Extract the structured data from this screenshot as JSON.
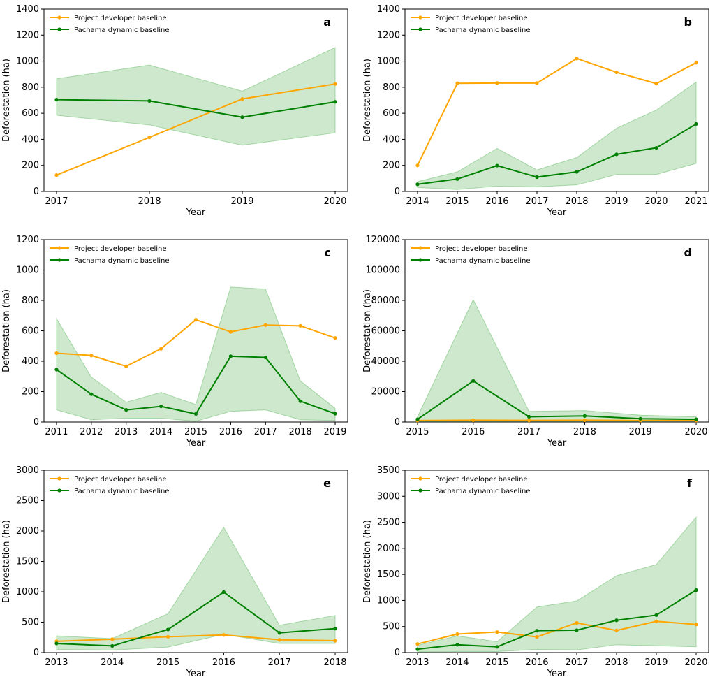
{
  "colors": {
    "developer": "#FFA500",
    "pachama": "#008000",
    "band": "#2ca02c"
  },
  "chart_data": [
    {
      "type": "line",
      "panel_label": "a",
      "xlabel": "Year",
      "ylabel": "Deforestation (ha)",
      "x": [
        2017,
        2018,
        2019,
        2020
      ],
      "ylim": [
        0,
        1400
      ],
      "yticks": [
        0,
        200,
        400,
        600,
        800,
        1000,
        1200,
        1400
      ],
      "grid": false,
      "legend_position": "top-left",
      "series": [
        {
          "name": "Project developer baseline",
          "values": [
            125,
            415,
            710,
            825
          ]
        },
        {
          "name": "Pachama dynamic baseline",
          "values": [
            705,
            695,
            570,
            688
          ]
        }
      ],
      "band": {
        "lower": [
          585,
          510,
          355,
          450
        ],
        "upper": [
          865,
          970,
          770,
          1105
        ]
      }
    },
    {
      "type": "line",
      "panel_label": "b",
      "xlabel": "Year",
      "ylabel": "Deforestation (ha)",
      "x": [
        2014,
        2015,
        2016,
        2017,
        2018,
        2019,
        2020,
        2021
      ],
      "ylim": [
        0,
        1400
      ],
      "yticks": [
        0,
        200,
        400,
        600,
        800,
        1000,
        1200,
        1400
      ],
      "grid": false,
      "legend_position": "top-left",
      "series": [
        {
          "name": "Project developer baseline",
          "values": [
            200,
            830,
            832,
            832,
            1020,
            915,
            828,
            988
          ]
        },
        {
          "name": "Pachama dynamic baseline",
          "values": [
            55,
            95,
            198,
            110,
            150,
            285,
            335,
            518
          ]
        }
      ],
      "band": {
        "lower": [
          30,
          15,
          40,
          35,
          50,
          130,
          130,
          215
        ],
        "upper": [
          75,
          150,
          330,
          165,
          260,
          485,
          625,
          840
        ]
      }
    },
    {
      "type": "line",
      "panel_label": "c",
      "xlabel": "Year",
      "ylabel": "Deforestation (ha)",
      "x": [
        2011,
        2012,
        2013,
        2014,
        2015,
        2016,
        2017,
        2018,
        2019
      ],
      "ylim": [
        0,
        1200
      ],
      "yticks": [
        0,
        200,
        400,
        600,
        800,
        1000,
        1200
      ],
      "grid": false,
      "legend_position": "top-left",
      "series": [
        {
          "name": "Project developer baseline",
          "values": [
            453,
            438,
            367,
            482,
            673,
            593,
            638,
            633,
            553
          ]
        },
        {
          "name": "Pachama dynamic baseline",
          "values": [
            345,
            183,
            80,
            103,
            53,
            433,
            425,
            137,
            55
          ]
        }
      ],
      "band": {
        "lower": [
          80,
          15,
          25,
          25,
          5,
          70,
          80,
          15,
          10
        ],
        "upper": [
          680,
          295,
          130,
          195,
          115,
          888,
          875,
          270,
          90
        ]
      }
    },
    {
      "type": "line",
      "panel_label": "d",
      "xlabel": "Year",
      "ylabel": "Deforestation (ha)",
      "x": [
        2015,
        2016,
        2017,
        2018,
        2019,
        2020
      ],
      "ylim": [
        0,
        120000
      ],
      "yticks": [
        0,
        20000,
        40000,
        60000,
        80000,
        100000,
        120000
      ],
      "grid": false,
      "legend_position": "top-left",
      "series": [
        {
          "name": "Project developer baseline",
          "values": [
            1000,
            1200,
            1100,
            1200,
            1000,
            1000
          ]
        },
        {
          "name": "Pachama dynamic baseline",
          "values": [
            1800,
            27000,
            3500,
            4000,
            2200,
            1800
          ]
        }
      ],
      "band": {
        "lower": [
          200,
          300,
          300,
          300,
          200,
          200
        ],
        "upper": [
          3500,
          80500,
          7000,
          7500,
          4500,
          3500
        ]
      }
    },
    {
      "type": "line",
      "panel_label": "e",
      "xlabel": "Year",
      "ylabel": "Deforestation (ha)",
      "x": [
        2013,
        2014,
        2015,
        2016,
        2017,
        2018
      ],
      "ylim": [
        0,
        3000
      ],
      "yticks": [
        0,
        500,
        1000,
        1500,
        2000,
        2500,
        3000
      ],
      "grid": false,
      "legend_position": "top-left",
      "series": [
        {
          "name": "Project developer baseline",
          "values": [
            185,
            220,
            260,
            290,
            210,
            195
          ]
        },
        {
          "name": "Pachama dynamic baseline",
          "values": [
            150,
            110,
            380,
            995,
            325,
            395
          ]
        }
      ],
      "band": {
        "lower": [
          50,
          40,
          90,
          300,
          150,
          150
        ],
        "upper": [
          275,
          230,
          640,
          2060,
          450,
          610
        ]
      }
    },
    {
      "type": "line",
      "panel_label": "f",
      "xlabel": "Year",
      "ylabel": "Deforestation (ha)",
      "x": [
        2013,
        2014,
        2015,
        2016,
        2017,
        2018,
        2019,
        2020
      ],
      "ylim": [
        0,
        3500
      ],
      "yticks": [
        0,
        500,
        1000,
        1500,
        2000,
        2500,
        3000,
        3500
      ],
      "grid": false,
      "legend_position": "top-left",
      "series": [
        {
          "name": "Project developer baseline",
          "values": [
            165,
            355,
            395,
            300,
            570,
            425,
            600,
            540
          ]
        },
        {
          "name": "Pachama dynamic baseline",
          "values": [
            65,
            150,
            110,
            420,
            430,
            620,
            720,
            1200
          ]
        }
      ],
      "band": {
        "lower": [
          15,
          20,
          20,
          60,
          50,
          150,
          130,
          110
        ],
        "upper": [
          140,
          320,
          210,
          875,
          990,
          1475,
          1690,
          2600
        ]
      }
    }
  ]
}
